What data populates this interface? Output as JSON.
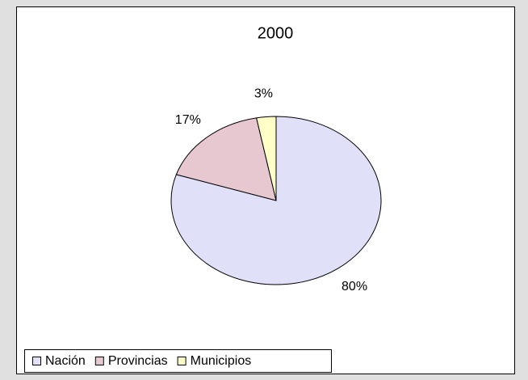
{
  "chart_data": {
    "type": "pie",
    "title": "2000",
    "categories": [
      "Nación",
      "Provincias",
      "Municipios"
    ],
    "values": [
      80,
      17,
      3
    ],
    "value_labels": [
      "80%",
      "17%",
      "3%"
    ],
    "colors": [
      "#e0e0f8",
      "#e8c8d0",
      "#ffffc8"
    ],
    "legend": "bottom-left"
  }
}
